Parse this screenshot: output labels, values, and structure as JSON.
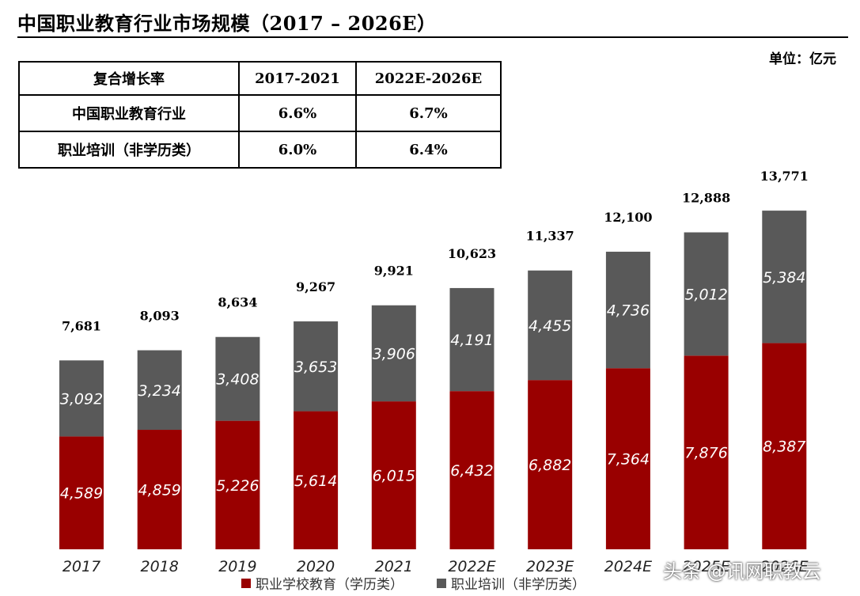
{
  "title": "中国职业教育行业市场规模（2017 – 2026E）",
  "unit": "单位：亿元",
  "cagr_table": {
    "headers": [
      "复合增长率",
      "2017-2021",
      "2022E-2026E"
    ],
    "rows": [
      [
        "中国职业教育行业",
        "6.6%",
        "6.7%"
      ],
      [
        "职业培训（非学历类）",
        "6.0%",
        "6.4%"
      ]
    ]
  },
  "colors": {
    "school": "#990000",
    "training": "#595959"
  },
  "chart_data": {
    "type": "bar",
    "stacked": true,
    "categories": [
      "2017",
      "2018",
      "2019",
      "2020",
      "2021",
      "2022E",
      "2023E",
      "2024E",
      "2025E",
      "2026E"
    ],
    "series": [
      {
        "name": "职业学校教育（学历类）",
        "values": [
          4589,
          4859,
          5226,
          5614,
          6015,
          6432,
          6882,
          7364,
          7876,
          8387
        ]
      },
      {
        "name": "职业培训（非学历类）",
        "values": [
          3092,
          3234,
          3408,
          3653,
          3906,
          4191,
          4455,
          4736,
          5012,
          5384
        ]
      }
    ],
    "value_labels": {
      "school": [
        "4,589",
        "4,859",
        "5,226",
        "5,614",
        "6,015",
        "6,432",
        "6,882",
        "7,364",
        "7,876",
        "8,387"
      ],
      "training": [
        "3,092",
        "3,234",
        "3,408",
        "3,653",
        "3,906",
        "4,191",
        "4,455",
        "4,736",
        "5,012",
        "5,384"
      ]
    },
    "totals": [
      "7,681",
      "8,093",
      "8,634",
      "9,267",
      "9,921",
      "10,623",
      "11,337",
      "12,100",
      "12,888",
      "13,771"
    ],
    "total_values": [
      7681,
      8093,
      8634,
      9267,
      9921,
      10623,
      11337,
      12100,
      12888,
      13771
    ],
    "ylim": [
      0,
      14000
    ],
    "xlabel": "",
    "ylabel": ""
  },
  "watermark": "头条 @讯网职教云"
}
